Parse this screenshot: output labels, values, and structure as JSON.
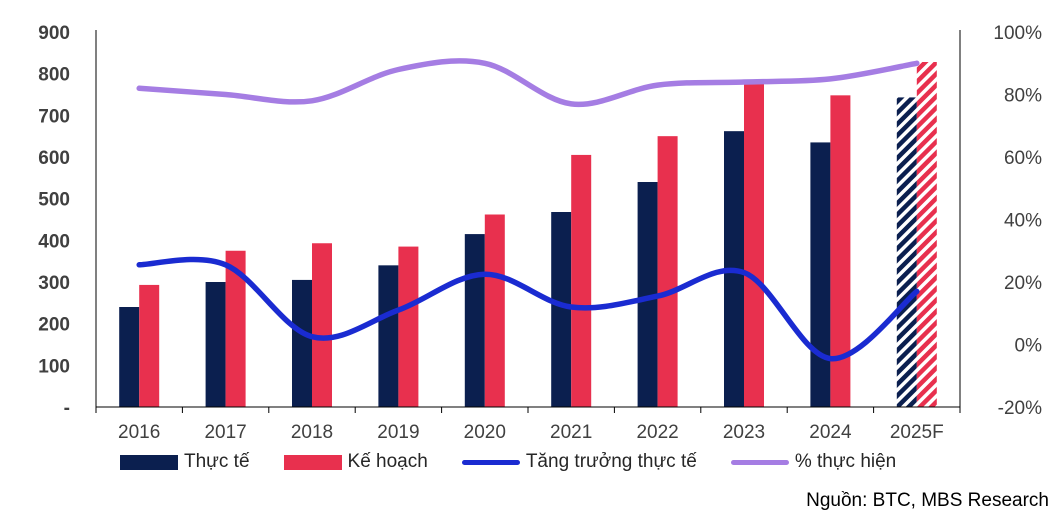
{
  "chart_data": {
    "type": "bar",
    "categories": [
      "2016",
      "2017",
      "2018",
      "2019",
      "2020",
      "2021",
      "2022",
      "2023",
      "2024",
      "2025F"
    ],
    "series": [
      {
        "name": "Thực tế",
        "kind": "bar",
        "axis": "left",
        "color": "#0b1f4f",
        "values": [
          240,
          300,
          305,
          340,
          415,
          468,
          540,
          662,
          635,
          743
        ]
      },
      {
        "name": "Kế hoạch",
        "kind": "bar",
        "axis": "left",
        "color": "#e8304e",
        "values": [
          293,
          375,
          393,
          385,
          462,
          605,
          650,
          785,
          748,
          828
        ]
      },
      {
        "name": "Tăng trưởng thực tế",
        "kind": "line",
        "axis": "right",
        "color": "#1a2bd1",
        "values": [
          25.5,
          25.5,
          2.5,
          11,
          22.5,
          12,
          15.5,
          23,
          -4.5,
          17
        ]
      },
      {
        "name": "% thực hiện",
        "kind": "line",
        "axis": "right",
        "color": "#a57de3",
        "values": [
          82,
          80,
          78,
          88,
          90,
          77,
          83,
          84,
          85,
          90
        ]
      }
    ],
    "forecast_category": "2025F",
    "y_left": {
      "min": 0,
      "max": 900,
      "step": 100,
      "tick_labels": [
        "-",
        "100",
        "200",
        "300",
        "400",
        "500",
        "600",
        "700",
        "800",
        "900"
      ]
    },
    "y_right": {
      "min": -20,
      "max": 100,
      "step": 20,
      "tick_labels": [
        "-20%",
        "0%",
        "20%",
        "40%",
        "60%",
        "80%",
        "100%"
      ]
    },
    "grid": false,
    "legend_position": "bottom"
  },
  "legend": {
    "items": [
      {
        "label": "Thực tế",
        "color": "#0b1f4f",
        "shape": "box"
      },
      {
        "label": "Kế hoạch",
        "color": "#e8304e",
        "shape": "box"
      },
      {
        "label": "Tăng trưởng thực tế",
        "color": "#1a2bd1",
        "shape": "line"
      },
      {
        "label": "% thực hiện",
        "color": "#a57de3",
        "shape": "line"
      }
    ]
  },
  "source": "Nguồn: BTC, MBS Research"
}
